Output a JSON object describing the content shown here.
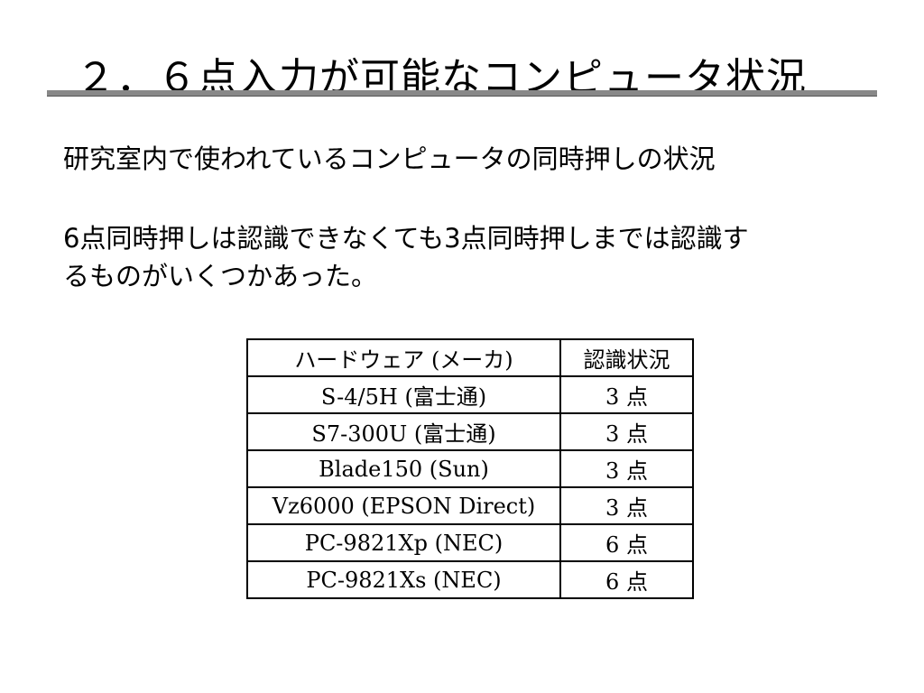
{
  "title": "２．６点入力が可能なコンピュータ状況",
  "paragraphs": [
    "研究室内で使われているコンピュータの同時押しの状況",
    "6点同時押しは認識できなくても3点同時押しまでは認識す",
    "るものがいくつかあった。"
  ],
  "table": {
    "headers": [
      "ハードウェア (メーカ)",
      "認識状況"
    ],
    "rows": [
      [
        "S-4/5H (富士通)",
        "3 点"
      ],
      [
        "S7-300U (富士通)",
        "3 点"
      ],
      [
        "Blade150 (Sun)",
        "3 点"
      ],
      [
        "Vz6000 (EPSON Direct)",
        "3 点"
      ],
      [
        "PC-9821Xp (NEC)",
        "6 点"
      ],
      [
        "PC-9821Xs (NEC)",
        "6 点"
      ]
    ]
  }
}
